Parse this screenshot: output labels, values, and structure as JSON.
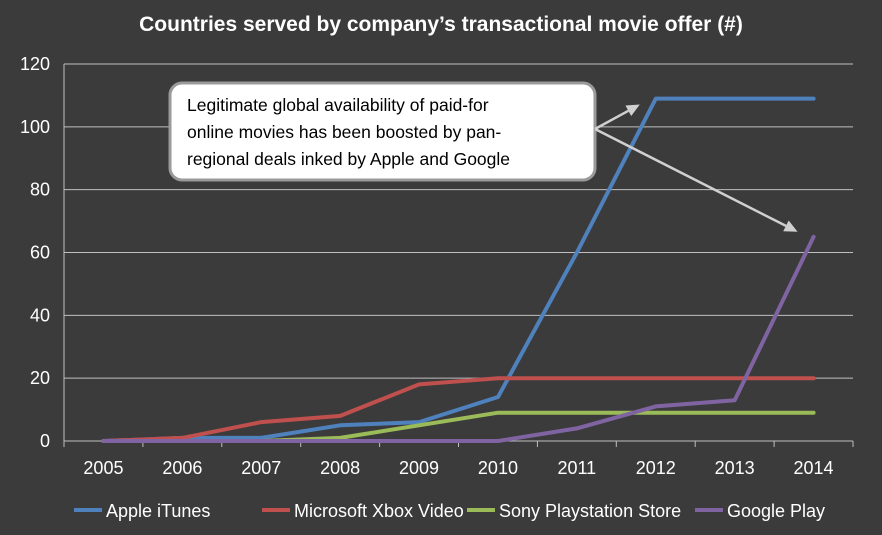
{
  "chart_data": {
    "type": "line",
    "title": "Countries served by company’s transactional movie offer (#)",
    "xlabel": "",
    "ylabel": "",
    "categories": [
      "2005",
      "2006",
      "2007",
      "2008",
      "2009",
      "2010",
      "2011",
      "2012",
      "2013",
      "2014"
    ],
    "ylim": [
      0,
      120
    ],
    "yticks": [
      0,
      20,
      40,
      60,
      80,
      100,
      120
    ],
    "grid": true,
    "legend_position": "bottom",
    "series": [
      {
        "name": "Apple iTunes",
        "color": "#4f81bd",
        "values": [
          0,
          1,
          1,
          5,
          6,
          14,
          60,
          109,
          109,
          109
        ]
      },
      {
        "name": "Microsoft Xbox Video",
        "color": "#c0504d",
        "values": [
          0,
          1,
          6,
          8,
          18,
          20,
          20,
          20,
          20,
          20
        ]
      },
      {
        "name": "Sony Playstation Store",
        "color": "#9bbb59",
        "values": [
          0,
          0,
          0,
          1,
          5,
          9,
          9,
          9,
          9,
          9
        ]
      },
      {
        "name": "Google Play",
        "color": "#8064a2",
        "values": [
          0,
          0,
          0,
          0,
          0,
          0,
          4,
          11,
          13,
          65
        ]
      }
    ],
    "annotation": {
      "lines": [
        "Legitimate global availability of paid-for",
        "online movies has been boosted by pan-",
        "regional deals inked by Apple and Google"
      ],
      "arrow_targets": [
        {
          "series": "Apple iTunes",
          "category": "2012"
        },
        {
          "series": "Google Play",
          "category": "2014"
        }
      ]
    }
  }
}
